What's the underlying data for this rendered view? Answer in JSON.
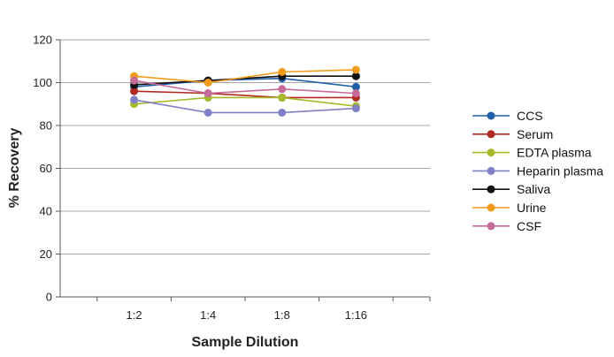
{
  "chart_data": {
    "type": "line",
    "title": "",
    "xlabel": "Sample Dilution",
    "ylabel": "% Recovery",
    "categories": [
      "1:2",
      "1:4",
      "1:8",
      "1:16"
    ],
    "ylim": [
      0,
      120
    ],
    "yticks": [
      0,
      20,
      40,
      60,
      80,
      100,
      120
    ],
    "grid": true,
    "legend_position": "right",
    "series": [
      {
        "name": "CCS",
        "color": "#1f5fa8",
        "values": [
          98,
          101,
          102,
          98
        ]
      },
      {
        "name": "Serum",
        "color": "#b02a22",
        "values": [
          96,
          95,
          93,
          93
        ]
      },
      {
        "name": "EDTA plasma",
        "color": "#a6b82a",
        "values": [
          90,
          93,
          93,
          89
        ]
      },
      {
        "name": "Heparin plasma",
        "color": "#8080c8",
        "values": [
          92,
          86,
          86,
          88
        ]
      },
      {
        "name": "Saliva",
        "color": "#111111",
        "values": [
          99,
          101,
          103,
          103
        ]
      },
      {
        "name": "Urine",
        "color": "#f29a1a",
        "values": [
          103,
          100,
          105,
          106
        ]
      },
      {
        "name": "CSF",
        "color": "#c66a9a",
        "values": [
          101,
          95,
          97,
          95
        ]
      }
    ]
  }
}
